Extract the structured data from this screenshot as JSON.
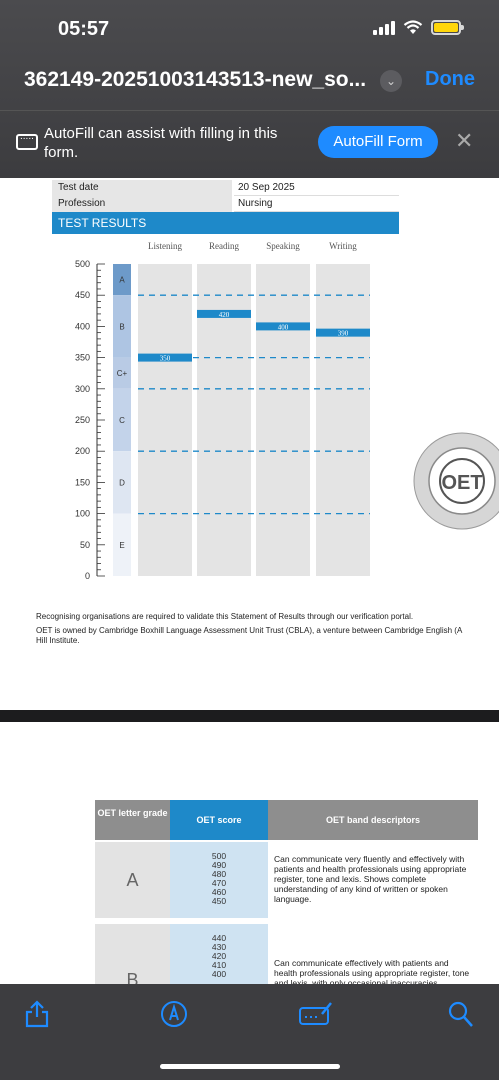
{
  "status": {
    "time": "05:57"
  },
  "header": {
    "title": "362149-20251003143513-new_so...",
    "done_label": "Done"
  },
  "autofill": {
    "message": "AutoFill can assist with filling in this form.",
    "button_label": "AutoFill Form"
  },
  "document": {
    "fields": [
      {
        "label": "Test date",
        "value": "20 Sep 2025"
      },
      {
        "label": "Profession",
        "value": "Nursing"
      }
    ],
    "section_title": "TEST RESULTS",
    "notes": [
      "Recognising organisations are required to validate this Statement of Results through our verification portal.",
      "OET is owned by Cambridge Boxhill Language Assessment Unit Trust (CBLA), a venture between Cambridge English (A",
      "Hill Institute."
    ],
    "seal": {
      "outer_text": "ASSESSMENT  CAMBRIDGE BOXHILL LANGUAGE",
      "center": "OET"
    }
  },
  "chart_data": {
    "type": "bar",
    "categories": [
      "Listening",
      "Reading",
      "Speaking",
      "Writing"
    ],
    "values": [
      350,
      420,
      400,
      390
    ],
    "ylim": [
      0,
      500
    ],
    "yticks": [
      0,
      50,
      100,
      150,
      200,
      250,
      300,
      350,
      400,
      450,
      500
    ],
    "grade_bands": [
      {
        "label": "A",
        "from": 450,
        "to": 500
      },
      {
        "label": "B",
        "from": 350,
        "to": 450
      },
      {
        "label": "C+",
        "from": 300,
        "to": 350
      },
      {
        "label": "C",
        "from": 200,
        "to": 300
      },
      {
        "label": "D",
        "from": 100,
        "to": 200
      },
      {
        "label": "E",
        "from": 0,
        "to": 100
      }
    ],
    "dashed_lines": [
      450,
      350,
      300,
      200,
      100
    ],
    "bar_color": "#1e89c9"
  },
  "grade_table": {
    "headers": [
      "OET letter grade",
      "OET score",
      "OET band descriptors"
    ],
    "rows": [
      {
        "grade": "A",
        "scores": [
          "500",
          "490",
          "480",
          "470",
          "460",
          "450"
        ],
        "descriptor": "Can communicate very fluently and effectively with patients and health professionals using appropriate register, tone and lexis. Shows complete understanding of any kind of written or spoken language."
      },
      {
        "grade": "B",
        "scores": [
          "440",
          "430",
          "420",
          "410",
          "400"
        ],
        "descriptor": "Can communicate effectively with patients and health professionals using appropriate register, tone and lexis, with only occasional inaccuracies"
      }
    ]
  },
  "toolbar": {
    "icons": [
      "share-icon",
      "markup-icon",
      "form-icon",
      "search-icon"
    ]
  }
}
